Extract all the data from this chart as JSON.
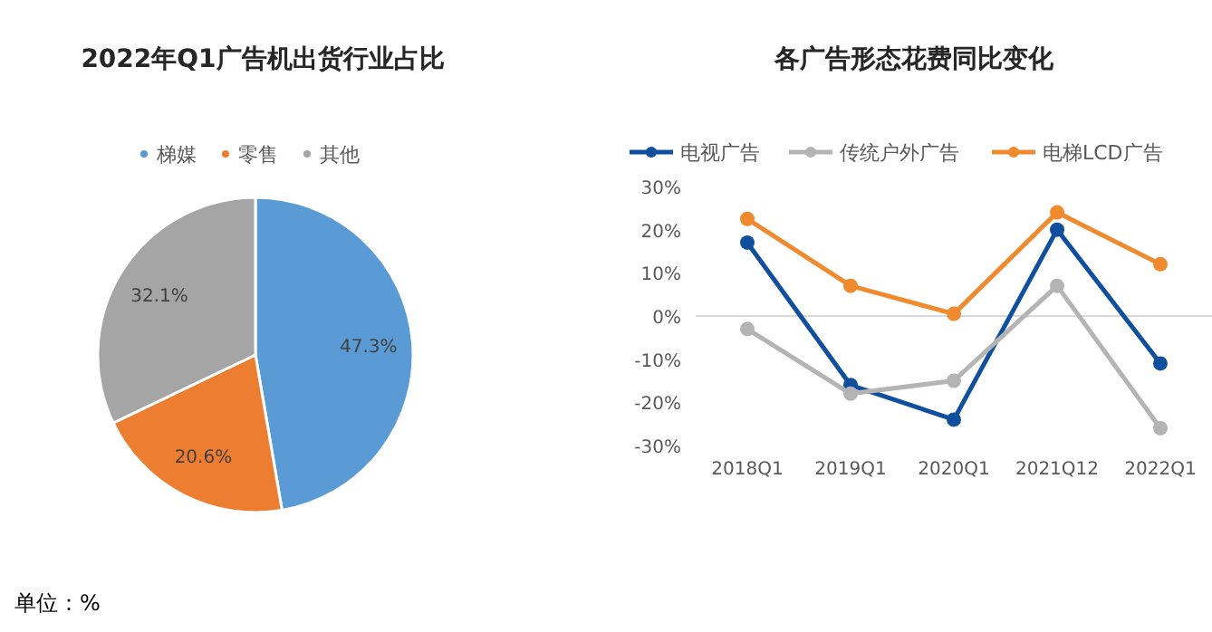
{
  "chart_data": [
    {
      "type": "pie",
      "title": "2022年Q1广告机出货行业占比",
      "categories": [
        "梯媒",
        "零售",
        "其他"
      ],
      "values": [
        47.3,
        20.6,
        32.1
      ],
      "colors": [
        "#5b9bd5",
        "#ed7d31",
        "#a5a5a5"
      ],
      "value_labels": [
        "47.3%",
        "20.6%",
        "32.1%"
      ],
      "legend": "top",
      "annotations": [
        "单位：%"
      ]
    },
    {
      "type": "line",
      "title": "各广告形态花费同比变化",
      "categories": [
        "2018Q1",
        "2019Q1",
        "2020Q1",
        "2021Q12",
        "2022Q1"
      ],
      "series": [
        {
          "name": "电视广告",
          "color": "#0f4f9e",
          "values": [
            17,
            -16,
            -24,
            20,
            -11
          ]
        },
        {
          "name": "传统户外广告",
          "color": "#b4b4b4",
          "values": [
            -3,
            -18,
            -15,
            7,
            -26
          ]
        },
        {
          "name": "电梯LCD广告",
          "color": "#f08a2e",
          "values": [
            22.5,
            7,
            0.5,
            24,
            12
          ]
        }
      ],
      "ylim": [
        -30,
        30
      ],
      "yticks": [
        {
          "value": -30,
          "label": "-30%"
        },
        {
          "value": -20,
          "label": "-20%"
        },
        {
          "value": -10,
          "label": "-10%"
        },
        {
          "value": 0,
          "label": "0%"
        },
        {
          "value": 10,
          "label": "10%"
        },
        {
          "value": 20,
          "label": "20%"
        },
        {
          "value": 30,
          "label": "30%"
        }
      ],
      "legend": "top",
      "marker": "circle",
      "line_style": "solid",
      "ref_lines": [
        {
          "axis": "y",
          "value": 0,
          "color": "#d9d9d9"
        }
      ]
    }
  ]
}
